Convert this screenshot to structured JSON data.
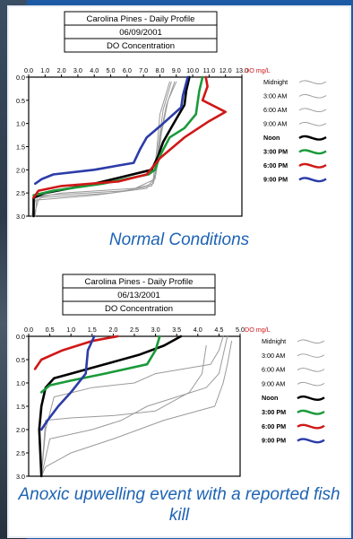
{
  "colors": {
    "background": "#1d5aa6",
    "caption": "#1e63b4",
    "do_label": "#d01818"
  },
  "captions": {
    "top": "Normal Conditions",
    "bottom": "Anoxic upwelling event with a reported fish kill"
  },
  "chart_data": [
    {
      "type": "line",
      "title": "Carolina Pines - Daily Profile",
      "subtitle": "06/09/2001",
      "header_label": "DO Concentration",
      "x_unit_label": "DO mg/L",
      "xlim": [
        0,
        13
      ],
      "x_ticks": [
        "0.0",
        "1.0",
        "2.0",
        "3.0",
        "4.0",
        "5.0",
        "6.0",
        "7.0",
        "8.0",
        "9.0",
        "10.0",
        "11.0",
        "12.0",
        "13.0"
      ],
      "ylim": [
        0,
        3
      ],
      "y_ticks": [
        "0.0",
        "0.5",
        "1.0",
        "1.5",
        "2.0",
        "2.5",
        "3.0"
      ],
      "y_reversed": true,
      "legend_position": "right",
      "series": [
        {
          "name": "Midnight",
          "color": "#9a9a9a",
          "width": 1,
          "points": [
            [
              8.9,
              0.1
            ],
            [
              8.4,
              0.6
            ],
            [
              8.0,
              1.3
            ],
            [
              7.8,
              2.0
            ],
            [
              7.6,
              2.3
            ],
            [
              6.0,
              2.45
            ],
            [
              1.0,
              2.55
            ],
            [
              0.4,
              2.6
            ],
            [
              0.3,
              3.0
            ]
          ]
        },
        {
          "name": "3:00 AM",
          "color": "#9a9a9a",
          "width": 1,
          "points": [
            [
              8.7,
              0.1
            ],
            [
              8.2,
              0.7
            ],
            [
              7.9,
              1.5
            ],
            [
              7.7,
              2.1
            ],
            [
              7.5,
              2.35
            ],
            [
              5.0,
              2.5
            ],
            [
              0.8,
              2.6
            ],
            [
              0.3,
              2.7
            ],
            [
              0.2,
              3.0
            ]
          ]
        },
        {
          "name": "6:00 AM",
          "color": "#9a9a9a",
          "width": 1,
          "points": [
            [
              8.6,
              0.1
            ],
            [
              8.0,
              0.8
            ],
            [
              7.8,
              1.6
            ],
            [
              7.6,
              2.2
            ],
            [
              7.2,
              2.4
            ],
            [
              4.0,
              2.55
            ],
            [
              0.6,
              2.65
            ],
            [
              0.3,
              3.0
            ]
          ]
        },
        {
          "name": "9:00 AM",
          "color": "#9a9a9a",
          "width": 1,
          "points": [
            [
              9.0,
              0.1
            ],
            [
              8.5,
              0.5
            ],
            [
              8.1,
              1.2
            ],
            [
              7.9,
              1.8
            ],
            [
              7.7,
              2.2
            ],
            [
              6.5,
              2.4
            ],
            [
              2.0,
              2.5
            ],
            [
              0.5,
              2.6
            ],
            [
              0.4,
              3.0
            ]
          ]
        },
        {
          "name": "Noon",
          "color": "#000000",
          "width": 2.6,
          "points": [
            [
              9.8,
              0.0
            ],
            [
              9.6,
              0.3
            ],
            [
              9.5,
              0.6
            ],
            [
              9.0,
              0.9
            ],
            [
              8.6,
              1.15
            ],
            [
              8.2,
              1.4
            ],
            [
              7.9,
              1.7
            ],
            [
              7.5,
              2.0
            ],
            [
              4.0,
              2.3
            ],
            [
              1.0,
              2.5
            ],
            [
              0.3,
              2.6
            ],
            [
              0.3,
              3.0
            ]
          ]
        },
        {
          "name": "3:00 PM",
          "color": "#1a9a3a",
          "width": 2.6,
          "points": [
            [
              10.6,
              0.0
            ],
            [
              10.4,
              0.3
            ],
            [
              10.2,
              0.8
            ],
            [
              9.5,
              1.1
            ],
            [
              8.6,
              1.3
            ],
            [
              8.0,
              1.7
            ],
            [
              7.7,
              2.0
            ],
            [
              7.3,
              2.1
            ],
            [
              4.5,
              2.3
            ],
            [
              1.5,
              2.45
            ],
            [
              0.3,
              2.55
            ]
          ]
        },
        {
          "name": "6:00 PM",
          "color": "#d01818",
          "width": 2.6,
          "points": [
            [
              10.8,
              0.0
            ],
            [
              10.9,
              0.2
            ],
            [
              10.6,
              0.5
            ],
            [
              12.0,
              0.75
            ],
            [
              11.0,
              0.95
            ],
            [
              9.5,
              1.3
            ],
            [
              8.0,
              1.75
            ],
            [
              7.2,
              2.1
            ],
            [
              5.5,
              2.25
            ],
            [
              2.0,
              2.35
            ],
            [
              0.6,
              2.45
            ],
            [
              0.3,
              2.6
            ]
          ]
        },
        {
          "name": "9:00 PM",
          "color": "#2b3ca8",
          "width": 2.6,
          "points": [
            [
              9.7,
              0.0
            ],
            [
              9.4,
              0.4
            ],
            [
              9.3,
              0.65
            ],
            [
              8.2,
              1.0
            ],
            [
              7.2,
              1.3
            ],
            [
              6.8,
              1.55
            ],
            [
              6.4,
              1.85
            ],
            [
              4.0,
              2.0
            ],
            [
              1.5,
              2.1
            ],
            [
              0.8,
              2.2
            ],
            [
              0.4,
              2.3
            ]
          ]
        }
      ]
    },
    {
      "type": "line",
      "title": "Carolina Pines - Daily Profile",
      "subtitle": "06/13/2001",
      "header_label": "DO Concentration",
      "x_unit_label": "DO mg/L",
      "xlim": [
        0,
        5
      ],
      "x_ticks": [
        "0.0",
        "0.5",
        "1.0",
        "1.5",
        "2.0",
        "2.5",
        "3.0",
        "3.5",
        "4.0",
        "4.5",
        "5.0"
      ],
      "ylim": [
        0,
        3
      ],
      "y_ticks": [
        "0.0",
        "0.5",
        "1.0",
        "1.5",
        "2.0",
        "2.5",
        "3.0"
      ],
      "y_reversed": true,
      "legend_position": "right",
      "series": [
        {
          "name": "Midnight",
          "color": "#9a9a9a",
          "width": 1,
          "points": [
            [
              4.6,
              0.0
            ],
            [
              4.5,
              0.3
            ],
            [
              4.3,
              0.6
            ],
            [
              3.0,
              0.8
            ],
            [
              2.5,
              1.0
            ],
            [
              1.5,
              1.1
            ],
            [
              0.6,
              1.3
            ],
            [
              0.4,
              2.0
            ],
            [
              0.3,
              3.0
            ]
          ]
        },
        {
          "name": "3:00 AM",
          "color": "#9a9a9a",
          "width": 1,
          "points": [
            [
              4.7,
              0.0
            ],
            [
              4.6,
              0.4
            ],
            [
              4.5,
              0.8
            ],
            [
              4.2,
              1.1
            ],
            [
              3.5,
              1.3
            ],
            [
              2.8,
              1.5
            ],
            [
              2.2,
              1.8
            ],
            [
              1.5,
              2.0
            ],
            [
              0.5,
              2.2
            ],
            [
              0.3,
              3.0
            ]
          ]
        },
        {
          "name": "6:00 AM",
          "color": "#9a9a9a",
          "width": 1,
          "points": [
            [
              4.8,
              0.1
            ],
            [
              4.7,
              0.6
            ],
            [
              4.6,
              1.0
            ],
            [
              4.4,
              1.5
            ],
            [
              3.2,
              1.8
            ],
            [
              2.0,
              2.2
            ],
            [
              1.0,
              2.5
            ],
            [
              0.4,
              2.8
            ],
            [
              0.3,
              3.0
            ]
          ]
        },
        {
          "name": "9:00 AM",
          "color": "#9a9a9a",
          "width": 1,
          "points": [
            [
              4.2,
              0.2
            ],
            [
              4.1,
              0.8
            ],
            [
              3.8,
              1.2
            ],
            [
              3.0,
              1.6
            ],
            [
              2.0,
              1.7
            ],
            [
              1.0,
              1.75
            ],
            [
              0.4,
              1.8
            ],
            [
              0.3,
              3.0
            ]
          ]
        },
        {
          "name": "Noon",
          "color": "#000000",
          "width": 2.6,
          "points": [
            [
              3.6,
              0.0
            ],
            [
              3.2,
              0.2
            ],
            [
              2.6,
              0.4
            ],
            [
              2.0,
              0.55
            ],
            [
              1.4,
              0.7
            ],
            [
              1.0,
              0.8
            ],
            [
              0.6,
              0.9
            ],
            [
              0.4,
              1.1
            ],
            [
              0.3,
              1.5
            ],
            [
              0.25,
              2.0
            ],
            [
              0.3,
              3.0
            ]
          ]
        },
        {
          "name": "3:00 PM",
          "color": "#1a9a3a",
          "width": 2.6,
          "points": [
            [
              3.1,
              0.0
            ],
            [
              3.0,
              0.3
            ],
            [
              2.8,
              0.6
            ],
            [
              1.8,
              0.8
            ],
            [
              1.0,
              0.95
            ],
            [
              0.5,
              1.05
            ],
            [
              0.3,
              1.2
            ]
          ]
        },
        {
          "name": "6:00 PM",
          "color": "#d01818",
          "width": 2.6,
          "points": [
            [
              2.1,
              0.0
            ],
            [
              1.5,
              0.1
            ],
            [
              0.8,
              0.3
            ],
            [
              0.3,
              0.5
            ],
            [
              0.15,
              0.7
            ]
          ]
        },
        {
          "name": "9:00 PM",
          "color": "#2b3ca8",
          "width": 2.6,
          "points": [
            [
              1.55,
              0.0
            ],
            [
              1.4,
              0.3
            ],
            [
              1.35,
              0.8
            ],
            [
              1.0,
              1.2
            ],
            [
              0.7,
              1.5
            ],
            [
              0.45,
              1.8
            ],
            [
              0.3,
              2.0
            ]
          ]
        }
      ]
    }
  ]
}
